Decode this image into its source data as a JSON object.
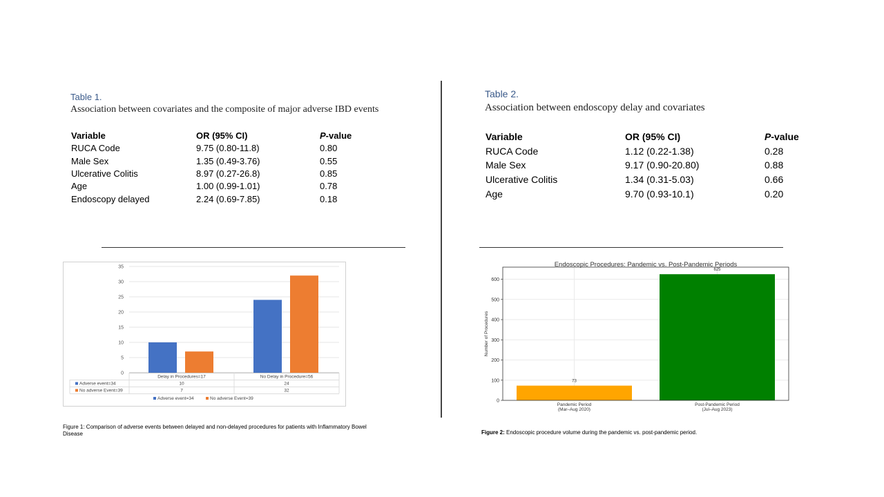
{
  "table1": {
    "number": "Table 1.",
    "caption": "Association between covariates and the composite of major adverse IBD events",
    "headers": {
      "variable": "Variable",
      "or": "OR (95% CI)",
      "p_prefix": "P",
      "p_suffix": "-value"
    },
    "rows": [
      {
        "variable": "RUCA Code",
        "or": "9.75 (0.80-11.8)",
        "p": "0.80"
      },
      {
        "variable": "Male Sex",
        "or": "1.35 (0.49-3.76)",
        "p": "0.55"
      },
      {
        "variable": "Ulcerative Colitis",
        "or": "8.97 (0.27-26.8)",
        "p": "0.85"
      },
      {
        "variable": "Age",
        "or": "1.00 (0.99-1.01)",
        "p": "0.78"
      },
      {
        "variable": "Endoscopy delayed",
        "or": "2.24 (0.69-7.85)",
        "p": "0.18"
      }
    ]
  },
  "table2": {
    "number": "Table 2.",
    "caption": "Association between endoscopy delay and covariates",
    "headers": {
      "variable": "Variable",
      "or": "OR (95% CI)",
      "p_prefix": "P",
      "p_suffix": "-value"
    },
    "rows": [
      {
        "variable": "RUCA Code",
        "or": "1.12 (0.22-1.38)",
        "p": "0.28"
      },
      {
        "variable": "Male Sex",
        "or": "9.17 (0.90-20.80)",
        "p": "0.88"
      },
      {
        "variable": "Ulcerative Colitis",
        "or": "1.34 (0.31-5.03)",
        "p": "0.66"
      },
      {
        "variable": "Age",
        "or": "9.70 (0.93-10.1)",
        "p": "0.20"
      }
    ]
  },
  "figure1_caption": "Figure 1: Comparison of adverse events between delayed and non-delayed procedures for patients with Inflammatory Bowel Disease",
  "figure2_caption_label": "Figure 2:",
  "figure2_caption_text": " Endoscopic procedure volume during the pandemic vs. post-pandemic period.",
  "chart_data": [
    {
      "type": "bar",
      "title": "",
      "categories": [
        "Delay in Procedures=17",
        "No Delay in Procedure=56"
      ],
      "series": [
        {
          "name": "Adverse event=34",
          "values": [
            10,
            24
          ],
          "color": "#4472c4"
        },
        {
          "name": "No adverse Event=39",
          "values": [
            7,
            32
          ],
          "color": "#ed7d31"
        }
      ],
      "ylim": [
        0,
        35
      ],
      "yticks": [
        0,
        5,
        10,
        15,
        20,
        25,
        30,
        35
      ],
      "data_table": true,
      "grid": true,
      "legend": "bottom"
    },
    {
      "type": "bar",
      "title": "Endoscopic Procedures: Pandemic vs. Post-Pandemic Periods",
      "ylabel": "Number of Procedures",
      "categories": [
        "Pandemic Period\n(Mar–Aug 2020)",
        "Post-Pandemic Period\n(Jul–Aug 2023)"
      ],
      "values": [
        73,
        625
      ],
      "colors": [
        "#ffa500",
        "#008000"
      ],
      "ylim": [
        0,
        660
      ],
      "yticks": [
        0,
        100,
        200,
        300,
        400,
        500,
        600
      ],
      "grid": true
    }
  ]
}
